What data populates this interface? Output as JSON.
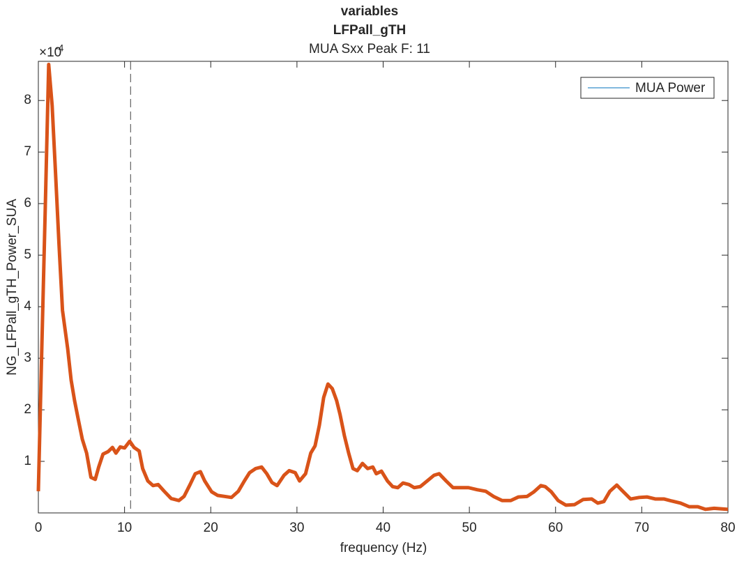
{
  "chart_data": {
    "type": "line",
    "title": "variables",
    "subtitle": "LFPall_gTH",
    "subtitle2": "MUA Sxx Peak F: 11",
    "x_label": "frequency (Hz)",
    "y_label": "NG_LFPall_gTH_Power_SUA",
    "y_exponent_base": "×10",
    "y_exponent": "-4",
    "x": [
      0,
      0.4,
      0.8,
      1.2,
      1.6,
      2.0,
      2.4,
      2.8,
      3.4,
      3.8,
      4.2,
      4.6,
      5.1,
      5.6,
      6.1,
      6.6,
      7.0,
      7.5,
      8.1,
      8.6,
      9.0,
      9.5,
      10.0,
      10.6,
      11.1,
      11.7,
      12.1,
      12.7,
      13.3,
      13.9,
      14.6,
      15.4,
      16.3,
      16.9,
      17.6,
      18.2,
      18.8,
      19.3,
      20.1,
      20.8,
      21.6,
      22.4,
      23.2,
      23.9,
      24.5,
      25.2,
      25.9,
      26.5,
      27.1,
      27.7,
      28.5,
      29.1,
      29.8,
      30.3,
      31.0,
      31.6,
      32.1,
      32.6,
      33.1,
      33.6,
      34.1,
      34.6,
      35.0,
      35.5,
      36.0,
      36.5,
      37.0,
      37.6,
      38.2,
      38.8,
      39.2,
      39.8,
      40.5,
      41.1,
      41.7,
      42.3,
      43.0,
      43.6,
      44.3,
      45.1,
      45.9,
      46.5,
      47.3,
      48.1,
      48.9,
      49.9,
      50.9,
      51.9,
      52.8,
      53.8,
      54.8,
      55.7,
      56.7,
      57.5,
      58.3,
      58.8,
      59.5,
      60.3,
      61.2,
      62.2,
      63.2,
      64.2,
      64.9,
      65.6,
      66.3,
      67.1,
      67.8,
      68.7,
      69.7,
      70.6,
      71.6,
      72.6,
      73.5,
      74.5,
      75.5,
      76.5,
      77.4,
      78.4,
      80
    ],
    "series": [
      {
        "name": "MUA Power",
        "color": "#d95319",
        "legend_color": "#0072bd",
        "values": [
          0.42,
          3.19,
          5.9,
          8.7,
          7.9,
          6.57,
          5.2,
          3.93,
          3.19,
          2.58,
          2.18,
          1.84,
          1.43,
          1.16,
          0.69,
          0.65,
          0.89,
          1.14,
          1.19,
          1.27,
          1.16,
          1.28,
          1.26,
          1.39,
          1.27,
          1.2,
          0.86,
          0.62,
          0.53,
          0.55,
          0.42,
          0.28,
          0.24,
          0.32,
          0.55,
          0.76,
          0.8,
          0.62,
          0.41,
          0.34,
          0.32,
          0.3,
          0.42,
          0.62,
          0.78,
          0.86,
          0.89,
          0.76,
          0.59,
          0.53,
          0.73,
          0.82,
          0.78,
          0.62,
          0.76,
          1.16,
          1.3,
          1.7,
          2.24,
          2.5,
          2.41,
          2.18,
          1.91,
          1.5,
          1.16,
          0.86,
          0.82,
          0.96,
          0.86,
          0.89,
          0.76,
          0.81,
          0.62,
          0.51,
          0.49,
          0.58,
          0.55,
          0.49,
          0.51,
          0.62,
          0.73,
          0.76,
          0.62,
          0.49,
          0.49,
          0.49,
          0.45,
          0.42,
          0.32,
          0.24,
          0.24,
          0.31,
          0.32,
          0.41,
          0.53,
          0.51,
          0.41,
          0.24,
          0.15,
          0.16,
          0.26,
          0.27,
          0.19,
          0.22,
          0.42,
          0.54,
          0.42,
          0.27,
          0.3,
          0.31,
          0.27,
          0.27,
          0.23,
          0.19,
          0.12,
          0.12,
          0.07,
          0.09,
          0.07
        ]
      }
    ],
    "vline": 10.7,
    "xlim": [
      0,
      80
    ],
    "xticks": [
      0,
      10,
      20,
      30,
      40,
      50,
      60,
      70,
      80
    ],
    "ylim": [
      0,
      8.76
    ],
    "yticks": [
      1,
      2,
      3,
      4,
      5,
      6,
      7,
      8
    ],
    "legend": "upper right",
    "grid": false
  }
}
